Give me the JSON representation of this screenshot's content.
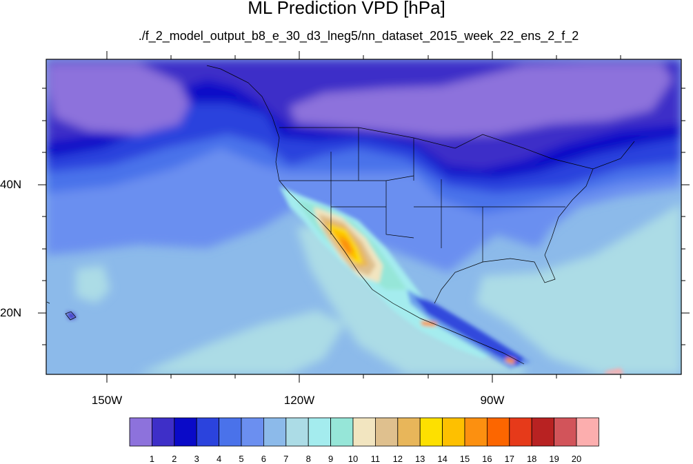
{
  "title": "ML Prediction VPD [hPa]",
  "subtitle": "./f_2_model_output_b8_e_30_d3_lneg5/nn_dataset_2015_week_22_ens_2_f_2",
  "axes": {
    "lat_ticks": [
      "40N",
      "20N"
    ],
    "lon_ticks": [
      "150W",
      "120W",
      "90W"
    ]
  },
  "colorbar": {
    "labels": [
      "1",
      "2",
      "3",
      "4",
      "5",
      "6",
      "7",
      "8",
      "9",
      "10",
      "11",
      "12",
      "13",
      "14",
      "15",
      "16",
      "17",
      "18",
      "19",
      "20"
    ],
    "colors": [
      "#8d72dc",
      "#3e2fc8",
      "#0a0ac8",
      "#2b43dd",
      "#4a72ea",
      "#6b8ff0",
      "#8cbaea",
      "#acdce6",
      "#a4ecee",
      "#96e6d8",
      "#f2e5c0",
      "#dfc08e",
      "#e8b65a",
      "#fde000",
      "#fec000",
      "#fc9010",
      "#fc6600",
      "#e63a1a",
      "#b82222",
      "#d2545a",
      "#fcaeae"
    ]
  }
}
